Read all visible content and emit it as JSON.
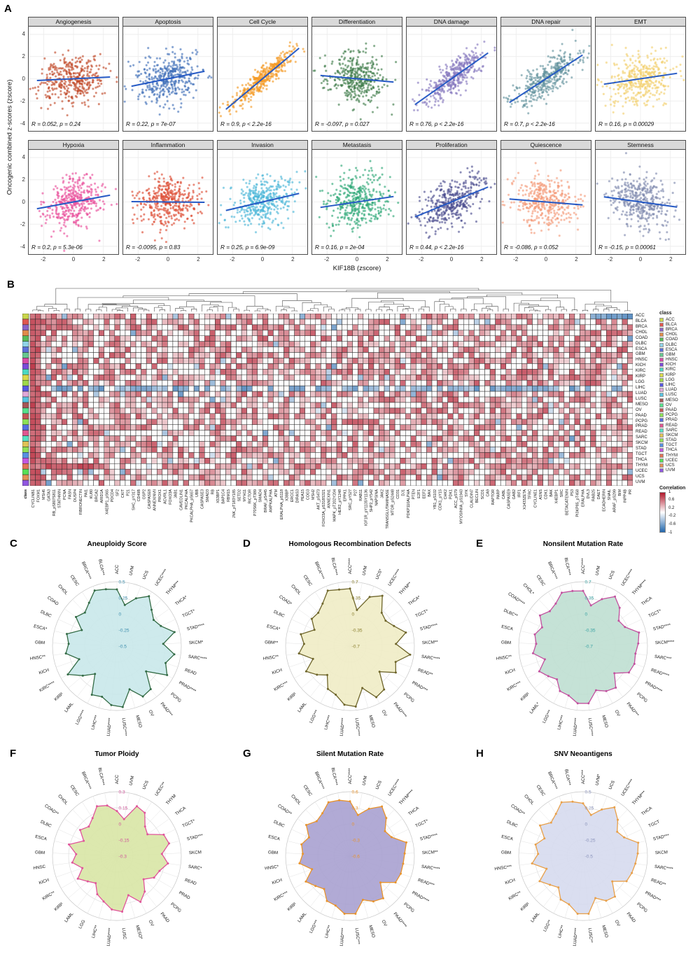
{
  "figure": {
    "panel_labels": {
      "A": "A",
      "B": "B",
      "C": "C",
      "D": "D",
      "E": "E",
      "F": "F",
      "G": "G",
      "H": "H"
    }
  },
  "chart_data": [
    {
      "id": "A",
      "type": "scatter",
      "xlabel": "KIF18B (zscore)",
      "ylabel": "Oncogenic combined z-scores (zscore)",
      "xlim": [
        -3,
        3
      ],
      "ylim": [
        -4.7,
        4.7
      ],
      "xticks": [
        -2,
        0,
        2
      ],
      "yticks": [
        4,
        2,
        0,
        -2,
        -4
      ],
      "regression_line_color": "#2257c4",
      "facets": [
        {
          "title": "Angiogenesis",
          "color": "#c14a2a",
          "R": 0.052,
          "p": "0.24",
          "annotation": "R = 0.052, p = 0.24"
        },
        {
          "title": "Apoptosis",
          "color": "#3f6fb8",
          "R": 0.22,
          "p": "7e-07",
          "annotation": "R = 0.22, p = 7e-07"
        },
        {
          "title": "Cell Cycle",
          "color": "#f59a23",
          "R": 0.9,
          "p": "< 2.2e-16",
          "annotation": "R = 0.9, p < 2.2e-16"
        },
        {
          "title": "Differentiation",
          "color": "#3f7d4a",
          "R": -0.097,
          "p": "0.027",
          "annotation": "R = -0.097, p = 0.027"
        },
        {
          "title": "DNA damage",
          "color": "#8678bf",
          "R": 0.76,
          "p": "< 2.2e-16",
          "annotation": "R = 0.76, p < 2.2e-16"
        },
        {
          "title": "DNA repair",
          "color": "#64939e",
          "R": 0.7,
          "p": "< 2.2e-16",
          "annotation": "R = 0.7, p < 2.2e-16"
        },
        {
          "title": "EMT",
          "color": "#f2cf6b",
          "R": 0.16,
          "p": "0.00029",
          "annotation": "R = 0.16, p = 0.00029"
        },
        {
          "title": "Hypoxia",
          "color": "#ea4f9b",
          "R": 0.2,
          "p": "5.3e-06",
          "annotation": "R = 0.2, p = 5.3e-06"
        },
        {
          "title": "Inflammation",
          "color": "#dd4b33",
          "R": -0.0095,
          "p": "0.83",
          "annotation": "R = -0.0095, p = 0.83"
        },
        {
          "title": "Invasion",
          "color": "#4bb7d8",
          "R": 0.25,
          "p": "6.9e-09",
          "annotation": "R = 0.25, p = 6.9e-09"
        },
        {
          "title": "Metastasis",
          "color": "#2ca876",
          "R": 0.16,
          "p": "2e-04",
          "annotation": "R = 0.16, p = 2e-04"
        },
        {
          "title": "Proliferation",
          "color": "#4c4d8f",
          "R": 0.44,
          "p": "< 2.2e-16",
          "annotation": "R = 0.44, p < 2.2e-16"
        },
        {
          "title": "Quiescence",
          "color": "#f49a78",
          "R": -0.086,
          "p": "0.052",
          "annotation": "R = -0.086, p = 0.052"
        },
        {
          "title": "Stemness",
          "color": "#7e88ad",
          "R": -0.15,
          "p": "0.00061",
          "annotation": "R = -0.15, p = 0.00061"
        }
      ]
    },
    {
      "id": "B",
      "type": "heatmap",
      "legend_class_title": "class",
      "legend_corr_title": "Correlation",
      "corr_ticks": [
        1,
        0.6,
        0.2,
        -0.2,
        -0.6,
        -1
      ],
      "corr_pos_color": "#b2182b",
      "corr_neg_color": "#2166ac",
      "rows": [
        "ACC",
        "BLCA",
        "BRCA",
        "CHOL",
        "COAD",
        "DLBC",
        "ESCA",
        "GBM",
        "HNSC",
        "KICH",
        "KIRC",
        "KIRP",
        "LGG",
        "LIHC",
        "LUAD",
        "LUSC",
        "MESO",
        "OV",
        "PAAD",
        "PCPG",
        "PRAD",
        "READ",
        "SARC",
        "SKCM",
        "STAD",
        "TGCT",
        "THCA",
        "THYM",
        "UCEC",
        "UCS",
        "UVM"
      ],
      "class_colors": [
        "#c9d64a",
        "#e0564f",
        "#8a63c6",
        "#e08b4a",
        "#57b957",
        "#8fd3e8",
        "#5b6fd8",
        "#65c78f",
        "#d84aa7",
        "#7a4ad8",
        "#4ad8c2",
        "#d8d84a",
        "#9ed84a",
        "#5656e0",
        "#e0a7d8",
        "#56c2e0",
        "#a75656",
        "#56e08b",
        "#c45656",
        "#8be056",
        "#566ce0",
        "#e05690",
        "#56e0c2",
        "#e0c256",
        "#90e056",
        "#5690e0",
        "#c256e0",
        "#e07356",
        "#56e056",
        "#e09056",
        "#9056e0"
      ],
      "class_column_label": "class",
      "columns": [
        "CYCLINB1",
        "FOXM1",
        "MSH6",
        "GATA3",
        "RB_pS807S811",
        "STATHMIN",
        "PCNA",
        "FASN",
        "DUSP4",
        "FIBRONECTIN",
        "PAI1",
        "KU80",
        "BRCA2",
        "ARID1A",
        "X4EBP1_pS65",
        "PDCD4",
        "SF2",
        "CKIT",
        "P21",
        "SHC_pY317",
        "CD49B",
        "GSP2",
        "CASPASE8",
        "ANNEXINVII",
        "PROX1",
        "ACVRL1",
        "FOXO3A",
        "JAB1",
        "CAVEOLIN1",
        "PKCALPHA",
        "PKCALPHA_pS657",
        "UBB",
        "CASPASE3",
        "SMAD3",
        "RB",
        "X53BP1",
        "BAP1C4",
        "RBM15",
        "JNK_pT183Y185",
        "SETD2",
        "MYH11",
        "RICTOR",
        "P70S6K_pT389",
        "SMAD4",
        "BRAF_pS445",
        "AMPKALPHA",
        "ATM",
        "ERALPHA_pS118",
        "X38BP",
        "ERCC1",
        "DIRAS3",
        "PEA15",
        "COG3",
        "MSH2",
        "AKT_pS473",
        "FOXO3A_pS318S321",
        "ANNEXIN1",
        "MAPK_pT202Y204",
        "HER2_pY1248",
        "EPPK1",
        "SRC_pY527",
        "P27",
        "RAB11",
        "IGF1R_pY1135Y1136",
        "SHP2_pY542",
        "NAPSINA",
        "JAK2",
        "TRANSGLUTAMINASE",
        "MTOR_pS2448",
        "CD31",
        "DJ1",
        "PDKP110ALPHA",
        "PTEN",
        "E2F1",
        "EEF2",
        "BAX",
        "YB1_pS102",
        "CDK1_pY15",
        "CHK2",
        "PDK1",
        "ACC_pS79",
        "MYOSINIIA_pS1943",
        "SYK",
        "CLAUDIN7",
        "BECLIN",
        "SCD1",
        "CA9",
        "RAPTOR",
        "PARP",
        "CABL",
        "CASPASE9",
        "GAB2",
        "IRF1",
        "X1433ZETA",
        "TFRC",
        "CYCLINE1",
        "ASNS",
        "CDK1",
        "BAK",
        "X4EBP1",
        "SRC",
        "BETACATENIN",
        "P53",
        "PI3KP85_pT458",
        "ERALPHA",
        "DVL3",
        "RAB25",
        "DAET",
        "ECADHERIN",
        "SNAIL",
        "ARAF_pS299",
        "BIM",
        "INPP4B",
        "PR"
      ],
      "generation": {
        "seed": 7,
        "p_red": 0.04,
        "p_blue": 0.025
      }
    },
    {
      "id": "C",
      "type": "radar",
      "title": "Aneuploidy Score",
      "axis_ticks": [
        0.5,
        0.25,
        0,
        -0.25,
        -0.5
      ],
      "fill": "#c9e8ea",
      "stroke": "#336b45",
      "point_color": "#336b45",
      "tick_color": "#3f8fae",
      "labels": [
        "ACC",
        "UVM",
        "UCS",
        "UCEC****",
        "THYM***",
        "THCA*",
        "TGCT*",
        "STAD****",
        "SKCM*",
        "SARC****",
        "READ",
        "PRAD****",
        "PCPG",
        "PAAD***",
        "OV",
        "MESO",
        "LUSC****",
        "LUAD****",
        "LIHC***",
        "LGG****",
        "LAML",
        "KIRP",
        "KIRC****",
        "KICH",
        "HNSC**",
        "GBM",
        "ESCA*",
        "DLBC",
        "COAD",
        "CHOL",
        "CESC",
        "BRCA****",
        "BLCA***"
      ],
      "values": [
        0.38,
        0.15,
        0.3,
        0.42,
        0.28,
        0.2,
        0.25,
        0.42,
        0.22,
        0.4,
        0.3,
        0.4,
        0.1,
        0.35,
        0.38,
        0.2,
        0.45,
        0.42,
        0.32,
        0.35,
        0.05,
        0.2,
        0.38,
        0.12,
        0.3,
        0.25,
        0.3,
        0.1,
        0.28,
        0.22,
        0.3,
        0.43,
        0.4
      ]
    },
    {
      "id": "D",
      "type": "radar",
      "title": "Homologous Recombination Defects",
      "axis_ticks": [
        0.7,
        0.35,
        0,
        -0.35,
        -0.7
      ],
      "fill": "#efecc5",
      "stroke": "#6e652a",
      "point_color": "#6e652a",
      "tick_color": "#8a7f2e",
      "labels": [
        "ACC****",
        "UVM",
        "UCS*",
        "UCEC****",
        "THYM**",
        "THCA*",
        "TGCT*",
        "STAD****",
        "SKCM**",
        "SARC****",
        "READ**",
        "PRAD***",
        "PCPG",
        "PAAD****",
        "OV",
        "MESO",
        "LUSC****",
        "LUAD****",
        "LIHC***",
        "LGG***",
        "LAML",
        "KIRP",
        "KIRC***",
        "KICH",
        "HNSC**",
        "GBM**",
        "ESCA*",
        "DLBC",
        "COAD*",
        "CHOL",
        "CESC",
        "BRCA****",
        "BLCA****"
      ],
      "values": [
        0.55,
        0.1,
        0.45,
        0.6,
        0.3,
        0.25,
        0.35,
        0.55,
        0.3,
        0.62,
        0.35,
        0.45,
        0.15,
        0.5,
        0.55,
        0.25,
        0.62,
        0.58,
        0.4,
        0.35,
        0.1,
        0.25,
        0.4,
        0.15,
        0.42,
        0.3,
        0.4,
        0.15,
        0.32,
        0.3,
        0.4,
        0.6,
        0.55
      ]
    },
    {
      "id": "E",
      "type": "radar",
      "title": "Nonsilent Mutation Rate",
      "axis_ticks": [
        0.7,
        0.35,
        0,
        -0.35,
        -0.7
      ],
      "fill": "#bfdfd2",
      "stroke": "#c2519f",
      "point_color": "#c2519f",
      "tick_color": "#3aa3a3",
      "labels": [
        "ACC****",
        "UVM",
        "UCS",
        "UCEC****",
        "THYM****",
        "THCA",
        "TGCT*",
        "STAD****",
        "SKCM****",
        "SARC***",
        "READ****",
        "PRAD****",
        "PCPG",
        "PAAD***",
        "OV",
        "MESO",
        "LUSC****",
        "LUAD****",
        "LIHC***",
        "LGG***",
        "LAML*",
        "KIRP",
        "KIRC***",
        "KICH",
        "HNSC**",
        "GBM",
        "ESCA",
        "DLBC**",
        "COAD****",
        "CHOL*",
        "CESC",
        "BRCA****",
        "BLCA****"
      ],
      "values": [
        0.5,
        0.2,
        0.4,
        0.58,
        0.45,
        0.25,
        0.3,
        0.55,
        0.5,
        0.45,
        0.48,
        0.45,
        0.2,
        0.45,
        0.4,
        0.3,
        0.55,
        0.55,
        0.42,
        0.4,
        0.22,
        0.3,
        0.4,
        0.18,
        0.4,
        0.32,
        0.38,
        0.28,
        0.45,
        0.35,
        0.4,
        0.55,
        0.52
      ]
    },
    {
      "id": "F",
      "type": "radar",
      "title": "Tumor Ploidy",
      "axis_ticks": [
        0.3,
        0.15,
        0,
        -0.15,
        -0.3
      ],
      "fill": "#d8e5a5",
      "stroke": "#e0559a",
      "point_color": "#e0559a",
      "tick_color": "#d0549a",
      "labels": [
        "ACC",
        "UVM",
        "UCS",
        "UCEC**",
        "THYM",
        "THCA",
        "TGCT*",
        "STAD***",
        "SKCM",
        "SARC*",
        "READ",
        "PRAD",
        "PCPG",
        "PAAD",
        "OV",
        "MESO*",
        "LUSC",
        "LUAD****",
        "LIHC**",
        "LGG",
        "LAML",
        "KIRP",
        "KIRC**",
        "KICH",
        "HNSC",
        "GBM",
        "ESCA",
        "DLBC",
        "COAD**",
        "CHOL",
        "CESC",
        "BRCA****",
        "BLCA****"
      ],
      "values": [
        0.12,
        0.05,
        0.2,
        0.18,
        0.08,
        0.05,
        0.18,
        0.2,
        0.12,
        0.18,
        0.12,
        0.1,
        0.03,
        0.12,
        0.18,
        0.08,
        0.22,
        0.2,
        0.14,
        0.1,
        0.02,
        0.06,
        0.12,
        0.04,
        0.12,
        0.08,
        0.16,
        0.04,
        0.12,
        0.08,
        0.12,
        0.2,
        0.18
      ]
    },
    {
      "id": "G",
      "type": "radar",
      "title": "Silent Mutation Rate",
      "axis_ticks": [
        0.6,
        0.3,
        0,
        -0.3,
        -0.6
      ],
      "fill": "#a8a1d0",
      "stroke": "#e8932c",
      "point_color": "#e8932c",
      "tick_color": "#e8932c",
      "labels": [
        "ACC****",
        "UVM",
        "UCS",
        "UCEC****",
        "THYM****",
        "THCA",
        "TGCT*",
        "STAD****",
        "SKCM**",
        "SARC****",
        "READ***",
        "PRAD****",
        "PCPG",
        "PAAD****",
        "OV",
        "MESO",
        "LUSC***",
        "LUAD****",
        "LIHC**",
        "LGG***",
        "LAML",
        "KIRP",
        "KIRC***",
        "KICH",
        "HNSC*",
        "GBM",
        "ESCA",
        "DLBC",
        "COAD**",
        "CHOL",
        "CESC",
        "BRCA****",
        "BLCA****"
      ],
      "values": [
        0.42,
        0.18,
        0.35,
        0.5,
        0.38,
        0.2,
        0.25,
        0.48,
        0.42,
        0.4,
        0.4,
        0.38,
        0.15,
        0.4,
        0.35,
        0.25,
        0.48,
        0.48,
        0.36,
        0.34,
        0.18,
        0.25,
        0.35,
        0.15,
        0.35,
        0.28,
        0.33,
        0.24,
        0.4,
        0.3,
        0.35,
        0.48,
        0.46
      ]
    },
    {
      "id": "H",
      "type": "radar",
      "title": "SNV Neoantigens",
      "axis_ticks": [
        0.5,
        0.25,
        0,
        -0.25,
        -0.5
      ],
      "fill": "#d6daee",
      "stroke": "#e8a04a",
      "point_color": "#e8a04a",
      "tick_color": "#8b93bb",
      "labels": [
        "ACC***",
        "UVM*",
        "UCS",
        "UCEC****",
        "THYM***",
        "THCA",
        "TGCT",
        "STAD***",
        "SKCM",
        "SARC****",
        "READ**",
        "PRAD***",
        "PCPG",
        "PAAD",
        "OV",
        "MESO",
        "LUSC**",
        "LUAD****",
        "LIHC**",
        "LGG**",
        "LAML",
        "KIRP",
        "KIRC**",
        "KICH",
        "HNSC***",
        "GBM",
        "ESCA",
        "DLBC",
        "COAD**",
        "CHOL",
        "CESC",
        "BRCA****",
        "BLCA***"
      ],
      "values": [
        0.32,
        0.15,
        0.28,
        0.4,
        0.28,
        0.15,
        0.2,
        0.38,
        0.35,
        0.32,
        0.3,
        0.28,
        0.1,
        0.3,
        0.28,
        0.18,
        0.4,
        0.4,
        0.28,
        0.26,
        0.12,
        0.18,
        0.28,
        0.1,
        0.3,
        0.2,
        0.26,
        0.16,
        0.32,
        0.22,
        0.28,
        0.4,
        0.36
      ]
    }
  ]
}
